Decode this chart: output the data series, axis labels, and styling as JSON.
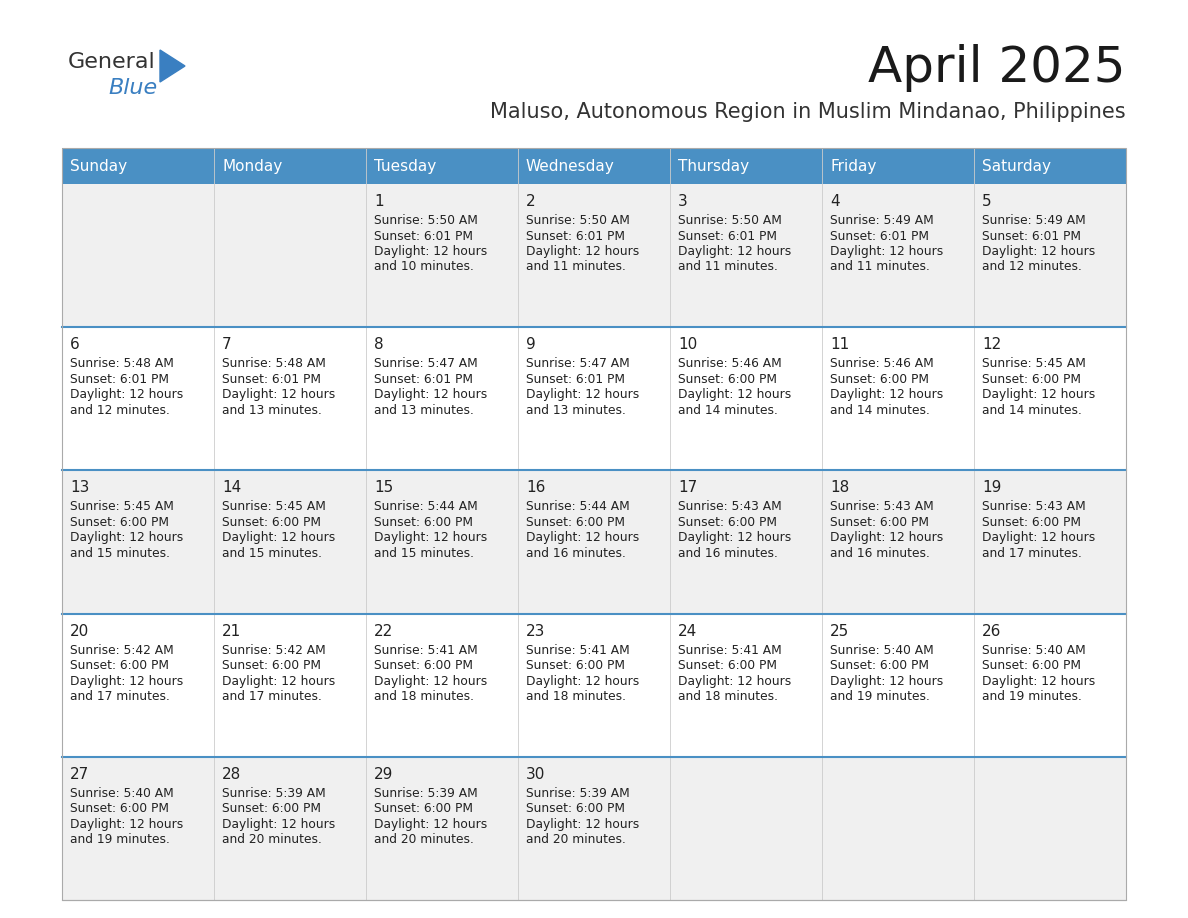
{
  "title": "April 2025",
  "subtitle": "Maluso, Autonomous Region in Muslim Mindanao, Philippines",
  "header_color": "#4a90c4",
  "header_text_color": "#ffffff",
  "cell_bg_odd": "#f0f0f0",
  "cell_bg_even": "#ffffff",
  "text_color": "#222222",
  "border_color": "#4a90c4",
  "divider_color": "#cccccc",
  "days_of_week": [
    "Sunday",
    "Monday",
    "Tuesday",
    "Wednesday",
    "Thursday",
    "Friday",
    "Saturday"
  ],
  "weeks": [
    [
      {
        "day": "",
        "sunrise": "",
        "sunset": "",
        "daylight": ""
      },
      {
        "day": "",
        "sunrise": "",
        "sunset": "",
        "daylight": ""
      },
      {
        "day": "1",
        "sunrise": "5:50 AM",
        "sunset": "6:01 PM",
        "daylight": "and 10 minutes."
      },
      {
        "day": "2",
        "sunrise": "5:50 AM",
        "sunset": "6:01 PM",
        "daylight": "and 11 minutes."
      },
      {
        "day": "3",
        "sunrise": "5:50 AM",
        "sunset": "6:01 PM",
        "daylight": "and 11 minutes."
      },
      {
        "day": "4",
        "sunrise": "5:49 AM",
        "sunset": "6:01 PM",
        "daylight": "and 11 minutes."
      },
      {
        "day": "5",
        "sunrise": "5:49 AM",
        "sunset": "6:01 PM",
        "daylight": "and 12 minutes."
      }
    ],
    [
      {
        "day": "6",
        "sunrise": "5:48 AM",
        "sunset": "6:01 PM",
        "daylight": "and 12 minutes."
      },
      {
        "day": "7",
        "sunrise": "5:48 AM",
        "sunset": "6:01 PM",
        "daylight": "and 13 minutes."
      },
      {
        "day": "8",
        "sunrise": "5:47 AM",
        "sunset": "6:01 PM",
        "daylight": "and 13 minutes."
      },
      {
        "day": "9",
        "sunrise": "5:47 AM",
        "sunset": "6:01 PM",
        "daylight": "and 13 minutes."
      },
      {
        "day": "10",
        "sunrise": "5:46 AM",
        "sunset": "6:00 PM",
        "daylight": "and 14 minutes."
      },
      {
        "day": "11",
        "sunrise": "5:46 AM",
        "sunset": "6:00 PM",
        "daylight": "and 14 minutes."
      },
      {
        "day": "12",
        "sunrise": "5:45 AM",
        "sunset": "6:00 PM",
        "daylight": "and 14 minutes."
      }
    ],
    [
      {
        "day": "13",
        "sunrise": "5:45 AM",
        "sunset": "6:00 PM",
        "daylight": "and 15 minutes."
      },
      {
        "day": "14",
        "sunrise": "5:45 AM",
        "sunset": "6:00 PM",
        "daylight": "and 15 minutes."
      },
      {
        "day": "15",
        "sunrise": "5:44 AM",
        "sunset": "6:00 PM",
        "daylight": "and 15 minutes."
      },
      {
        "day": "16",
        "sunrise": "5:44 AM",
        "sunset": "6:00 PM",
        "daylight": "and 16 minutes."
      },
      {
        "day": "17",
        "sunrise": "5:43 AM",
        "sunset": "6:00 PM",
        "daylight": "and 16 minutes."
      },
      {
        "day": "18",
        "sunrise": "5:43 AM",
        "sunset": "6:00 PM",
        "daylight": "and 16 minutes."
      },
      {
        "day": "19",
        "sunrise": "5:43 AM",
        "sunset": "6:00 PM",
        "daylight": "and 17 minutes."
      }
    ],
    [
      {
        "day": "20",
        "sunrise": "5:42 AM",
        "sunset": "6:00 PM",
        "daylight": "and 17 minutes."
      },
      {
        "day": "21",
        "sunrise": "5:42 AM",
        "sunset": "6:00 PM",
        "daylight": "and 17 minutes."
      },
      {
        "day": "22",
        "sunrise": "5:41 AM",
        "sunset": "6:00 PM",
        "daylight": "and 18 minutes."
      },
      {
        "day": "23",
        "sunrise": "5:41 AM",
        "sunset": "6:00 PM",
        "daylight": "and 18 minutes."
      },
      {
        "day": "24",
        "sunrise": "5:41 AM",
        "sunset": "6:00 PM",
        "daylight": "and 18 minutes."
      },
      {
        "day": "25",
        "sunrise": "5:40 AM",
        "sunset": "6:00 PM",
        "daylight": "and 19 minutes."
      },
      {
        "day": "26",
        "sunrise": "5:40 AM",
        "sunset": "6:00 PM",
        "daylight": "and 19 minutes."
      }
    ],
    [
      {
        "day": "27",
        "sunrise": "5:40 AM",
        "sunset": "6:00 PM",
        "daylight": "and 19 minutes."
      },
      {
        "day": "28",
        "sunrise": "5:39 AM",
        "sunset": "6:00 PM",
        "daylight": "and 20 minutes."
      },
      {
        "day": "29",
        "sunrise": "5:39 AM",
        "sunset": "6:00 PM",
        "daylight": "and 20 minutes."
      },
      {
        "day": "30",
        "sunrise": "5:39 AM",
        "sunset": "6:00 PM",
        "daylight": "and 20 minutes."
      },
      {
        "day": "",
        "sunrise": "",
        "sunset": "",
        "daylight": ""
      },
      {
        "day": "",
        "sunrise": "",
        "sunset": "",
        "daylight": ""
      },
      {
        "day": "",
        "sunrise": "",
        "sunset": "",
        "daylight": ""
      }
    ]
  ],
  "logo_general_color": "#333333",
  "logo_blue_color": "#3a7fc1",
  "logo_triangle_color": "#3a7fc1",
  "title_fontsize": 36,
  "subtitle_fontsize": 15,
  "header_fontsize": 11,
  "day_num_fontsize": 11,
  "cell_text_fontsize": 8.8
}
